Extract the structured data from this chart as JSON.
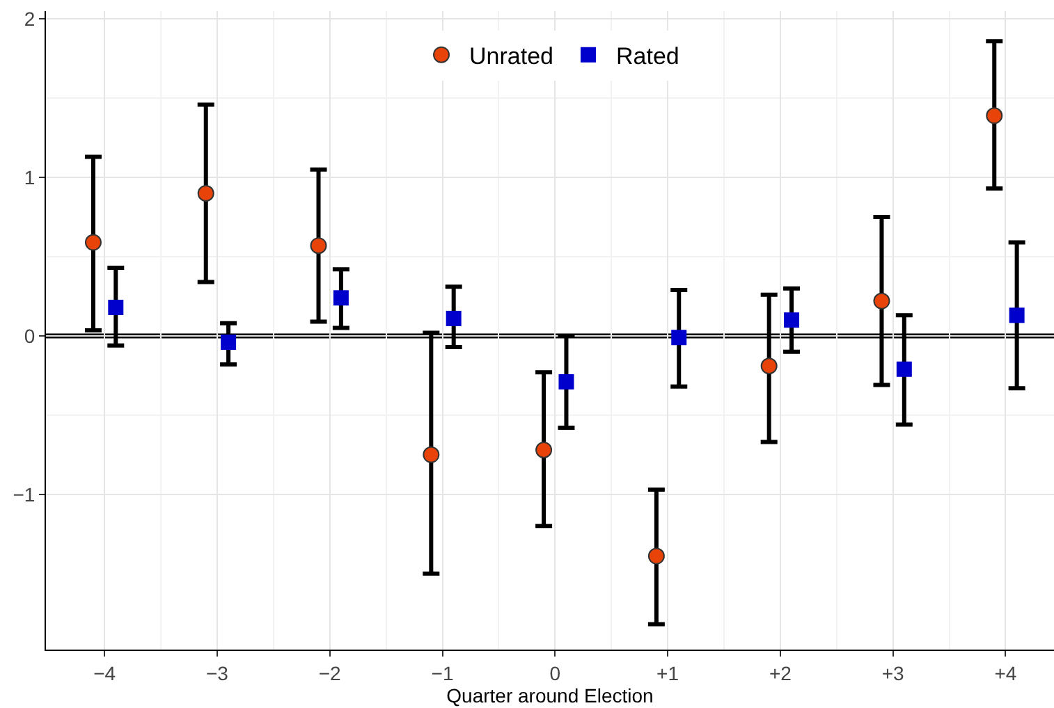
{
  "chart_data": {
    "type": "scatter",
    "xlabel": "Quarter around Election",
    "categories": [
      "−4",
      "−3",
      "−2",
      "−1",
      "0",
      "+1",
      "+2",
      "+3",
      "+4"
    ],
    "series": [
      {
        "name": "Unrated",
        "color": "#e8440a",
        "marker": "circle",
        "values": [
          0.59,
          0.9,
          0.57,
          -0.75,
          -0.72,
          -1.39,
          -0.19,
          0.22,
          1.39
        ],
        "errors": [
          [
            0.035,
            1.13
          ],
          [
            0.34,
            1.46
          ],
          [
            0.09,
            1.05
          ],
          [
            -1.5,
            0.02
          ],
          [
            -1.2,
            -0.23
          ],
          [
            -1.82,
            -0.97
          ],
          [
            -0.67,
            0.26
          ],
          [
            -0.31,
            0.75
          ],
          [
            0.93,
            1.86
          ]
        ]
      },
      {
        "name": "Rated",
        "color": "#0000cc",
        "marker": "square",
        "values": [
          0.18,
          -0.04,
          0.24,
          0.11,
          -0.29,
          -0.01,
          0.1,
          -0.21,
          0.13
        ],
        "errors": [
          [
            -0.06,
            0.43
          ],
          [
            -0.18,
            0.08
          ],
          [
            0.05,
            0.42
          ],
          [
            -0.07,
            0.31
          ],
          [
            -0.58,
            0.0
          ],
          [
            -0.32,
            0.29
          ],
          [
            -0.1,
            0.3
          ],
          [
            -0.56,
            0.13
          ],
          [
            -0.33,
            0.59
          ]
        ]
      }
    ],
    "ylim": [
      -1.98,
      2.05
    ],
    "yticks": [
      {
        "value": -1,
        "label": "−1"
      },
      0,
      1,
      2
    ],
    "ref_lines": [
      {
        "axis": "y",
        "value": 0,
        "color": "#000000"
      }
    ],
    "grid": true,
    "legend": "top"
  }
}
